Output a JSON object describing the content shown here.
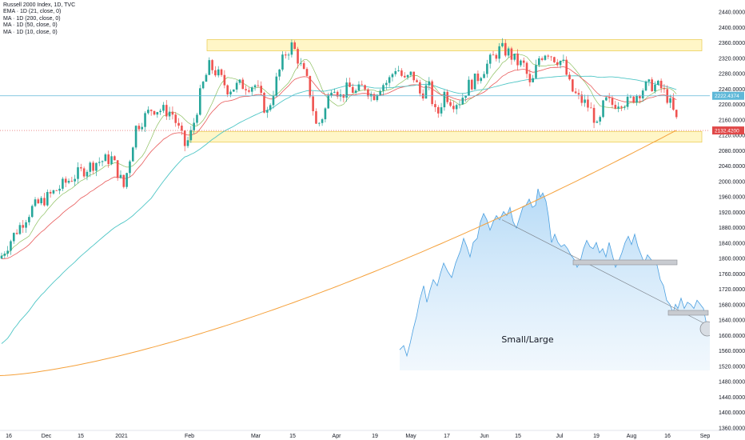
{
  "chart_data": {
    "type": "candlestick",
    "title": "Russell 2000 Index, 1D, TVC",
    "indicators": [
      "EMA · 1D (21, close, 0)",
      "MA · 1D (200, close, 0)",
      "MA · 1D (50, close, 0)",
      "MA · 1D (10, close, 0)"
    ],
    "y_axis": {
      "ylim": [
        1360,
        2440
      ],
      "ticks": [
        "2440.0000",
        "2400.0000",
        "2360.0000",
        "2320.0000",
        "2280.0000",
        "2240.0000",
        "2200.0000",
        "2160.0000",
        "2120.0000",
        "2080.0000",
        "2040.0000",
        "2000.0000",
        "1960.0000",
        "1920.0000",
        "1880.0000",
        "1840.0000",
        "1800.0000",
        "1760.0000",
        "1720.0000",
        "1680.0000",
        "1640.0000",
        "1600.0000",
        "1560.0000",
        "1520.0000",
        "1480.0000",
        "1440.0000",
        "1400.0000",
        "1360.0000"
      ]
    },
    "x_axis": {
      "ticks": [
        "16",
        "Dec",
        "15",
        "2021",
        "Feb",
        "Mar",
        "15",
        "Apr",
        "19",
        "May",
        "17",
        "Jun",
        "15",
        "Jul",
        "19",
        "Aug",
        "16",
        "Sep"
      ]
    },
    "price_tags": [
      {
        "value": 2222.4374,
        "label": "2222.4374",
        "color": "#5fb8d8"
      },
      {
        "value": 2132.42,
        "label": "2132.4200",
        "color": "#e04848"
      }
    ],
    "zones": [
      {
        "name": "resistance",
        "y": [
          2335,
          2360
        ]
      },
      {
        "name": "support",
        "y": [
          2102,
          2130
        ]
      }
    ],
    "inset": {
      "label": "Small/Large",
      "series_points": [
        [
          0,
          1590
        ],
        [
          5,
          1600
        ],
        [
          9,
          1575
        ],
        [
          13,
          1605
        ],
        [
          17,
          1640
        ],
        [
          21,
          1670
        ],
        [
          25,
          1710
        ],
        [
          30,
          1745
        ],
        [
          34,
          1705
        ],
        [
          38,
          1735
        ],
        [
          42,
          1760
        ],
        [
          47,
          1745
        ],
        [
          51,
          1775
        ],
        [
          55,
          1800
        ],
        [
          60,
          1780
        ],
        [
          65,
          1765
        ],
        [
          70,
          1800
        ],
        [
          76,
          1830
        ],
        [
          80,
          1860
        ],
        [
          84,
          1840
        ],
        [
          88,
          1815
        ],
        [
          92,
          1850
        ],
        [
          97,
          1860
        ],
        [
          101,
          1900
        ],
        [
          105,
          1920
        ],
        [
          109,
          1905
        ],
        [
          113,
          1880
        ],
        [
          117,
          1900
        ],
        [
          121,
          1915
        ],
        [
          125,
          1905
        ],
        [
          130,
          1925
        ],
        [
          134,
          1915
        ],
        [
          138,
          1935
        ],
        [
          142,
          1900
        ],
        [
          146,
          1885
        ],
        [
          150,
          1910
        ],
        [
          154,
          1935
        ],
        [
          158,
          1940
        ],
        [
          162,
          1955
        ],
        [
          166,
          1935
        ],
        [
          170,
          1940
        ],
        [
          173,
          1980
        ],
        [
          176,
          1960
        ],
        [
          179,
          1970
        ],
        [
          183,
          1950
        ],
        [
          186,
          1915
        ],
        [
          190,
          1850
        ],
        [
          194,
          1870
        ],
        [
          198,
          1850
        ],
        [
          202,
          1840
        ],
        [
          206,
          1845
        ],
        [
          210,
          1835
        ],
        [
          214,
          1820
        ],
        [
          218,
          1810
        ],
        [
          222,
          1790
        ],
        [
          226,
          1805
        ],
        [
          230,
          1835
        ],
        [
          234,
          1855
        ],
        [
          238,
          1840
        ],
        [
          242,
          1835
        ],
        [
          246,
          1850
        ],
        [
          250,
          1825
        ],
        [
          254,
          1835
        ],
        [
          258,
          1815
        ],
        [
          262,
          1850
        ],
        [
          266,
          1820
        ],
        [
          270,
          1790
        ],
        [
          274,
          1805
        ],
        [
          278,
          1825
        ],
        [
          282,
          1850
        ],
        [
          286,
          1865
        ],
        [
          290,
          1845
        ],
        [
          294,
          1870
        ],
        [
          298,
          1840
        ],
        [
          302,
          1820
        ],
        [
          306,
          1800
        ],
        [
          310,
          1820
        ],
        [
          314,
          1810
        ],
        [
          318,
          1800
        ],
        [
          322,
          1795
        ],
        [
          326,
          1760
        ],
        [
          330,
          1745
        ],
        [
          334,
          1710
        ],
        [
          338,
          1700
        ],
        [
          342,
          1680
        ],
        [
          345,
          1700
        ],
        [
          348,
          1690
        ],
        [
          352,
          1715
        ],
        [
          356,
          1690
        ],
        [
          360,
          1705
        ],
        [
          364,
          1700
        ],
        [
          368,
          1690
        ],
        [
          372,
          1710
        ],
        [
          376,
          1700
        ],
        [
          380,
          1690
        ],
        [
          383,
          1660
        ],
        [
          386,
          1640
        ],
        [
          388,
          1635
        ]
      ],
      "trendline": [
        [
          128,
          1905
        ],
        [
          385,
          1650
        ]
      ],
      "zones": [
        [
          1790,
          1800
        ],
        [
          1665,
          1675
        ]
      ],
      "circle_at": [
        389,
        1620
      ]
    },
    "grid": false,
    "legend_position": "top-left"
  }
}
